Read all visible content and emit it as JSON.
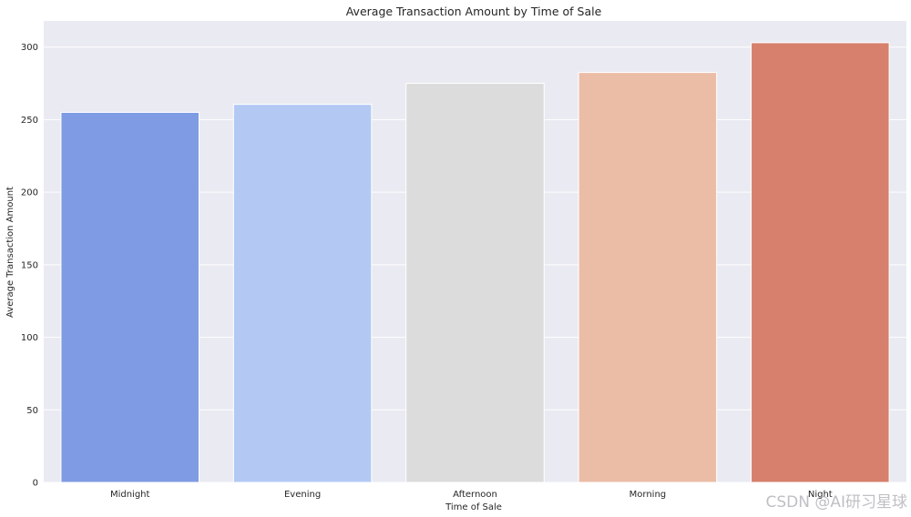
{
  "chart_data": {
    "type": "bar",
    "title": "Average Transaction Amount by Time of Sale",
    "xlabel": "Time of Sale",
    "ylabel": "Average Transaction Amount",
    "categories": [
      "Midnight",
      "Evening",
      "Afternoon",
      "Morning",
      "Night"
    ],
    "values": [
      255,
      260.5,
      275,
      282.5,
      303
    ],
    "colors": [
      "#7f9be3",
      "#b3c9f4",
      "#dcdcdc",
      "#ebbda7",
      "#d6806d"
    ],
    "ylim": [
      0,
      318
    ],
    "yticks": [
      0,
      50,
      100,
      150,
      200,
      250,
      300
    ],
    "grid": true,
    "background": "#eaeaf2"
  },
  "watermark": "CSDN @AI研习星球"
}
